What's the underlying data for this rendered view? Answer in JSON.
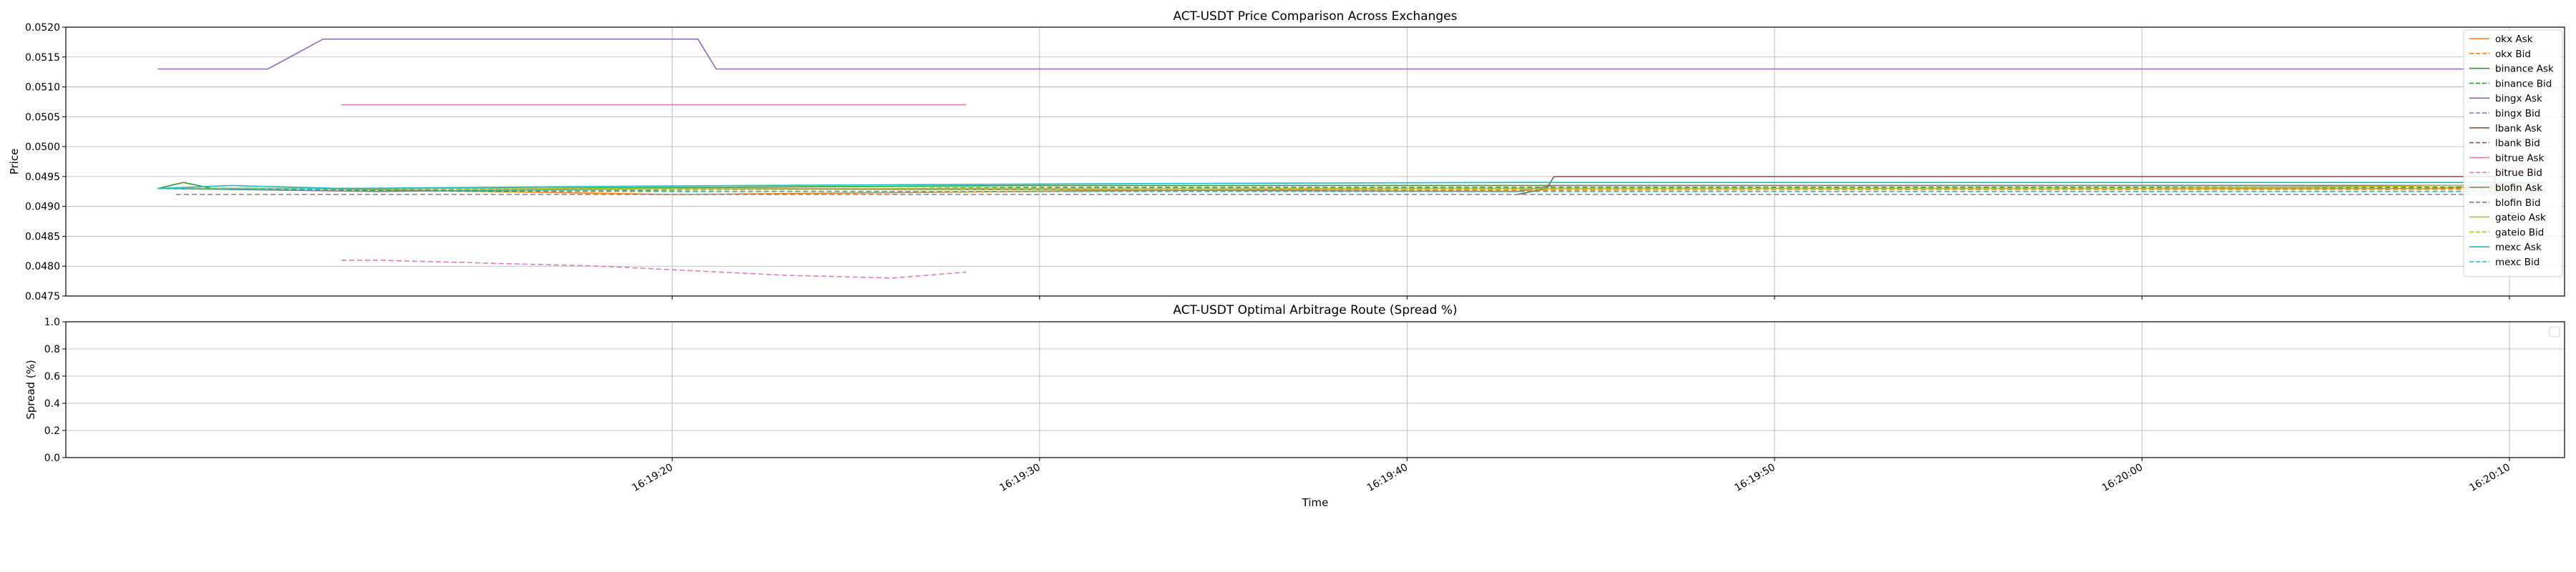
{
  "chart_data": [
    {
      "type": "line",
      "title": "ACT-USDT Price Comparison Across Exchanges",
      "xlabel": "",
      "ylabel": "Price",
      "xlim_seconds": [
        3.5,
        71.5
      ],
      "ylim": [
        0.0475,
        0.052
      ],
      "yticks": [
        "0.0475",
        "0.0480",
        "0.0485",
        "0.0490",
        "0.0495",
        "0.0500",
        "0.0505",
        "0.0510",
        "0.0515",
        "0.0520"
      ],
      "xticks_seconds": [
        20,
        30,
        40,
        50,
        60,
        70
      ],
      "grid": true,
      "legend_position": "right",
      "series": [
        {
          "name": "okx Ask",
          "color": "#ff7f0e",
          "dash": "solid",
          "x": [
            6,
            10,
            20,
            40,
            43,
            55,
            68,
            70
          ],
          "y": [
            0.0493,
            0.0493,
            0.0492,
            0.0493,
            0.0493,
            0.0493,
            0.0493,
            0.04935
          ]
        },
        {
          "name": "okx Bid",
          "color": "#ff7f0e",
          "dash": "dashed",
          "x": [
            6,
            15,
            30,
            50,
            68,
            70
          ],
          "y": [
            0.0493,
            0.04925,
            0.04925,
            0.04928,
            0.0493,
            0.0493
          ]
        },
        {
          "name": "binance Ask",
          "color": "#2ca02c",
          "dash": "solid",
          "x": [
            6,
            6.7,
            7.5,
            10,
            15,
            30,
            45,
            60,
            70
          ],
          "y": [
            0.0493,
            0.0494,
            0.0493,
            0.0493,
            0.0493,
            0.04935,
            0.04935,
            0.04935,
            0.04935
          ]
        },
        {
          "name": "binance Bid",
          "color": "#2ca02c",
          "dash": "dashed",
          "x": [
            6,
            15,
            30,
            45,
            60,
            70
          ],
          "y": [
            0.0493,
            0.04925,
            0.04932,
            0.04932,
            0.04932,
            0.04932
          ]
        },
        {
          "name": "bingx Ask",
          "color": "#9467bd",
          "dash": "solid",
          "x": [
            6,
            9,
            10.5,
            20.7,
            21.2,
            71
          ],
          "y": [
            0.0513,
            0.0513,
            0.0518,
            0.0518,
            0.0513,
            0.0513
          ]
        },
        {
          "name": "bingx Bid",
          "color": "#9467bd",
          "dash": "dashed",
          "x": [],
          "y": []
        },
        {
          "name": "lbank Ask",
          "color": "#8c564b",
          "dash": "solid",
          "x": [
            43,
            43.8,
            44,
            68.5,
            69.6,
            69.6
          ],
          "y": [
            0.0492,
            0.0493,
            0.0495,
            0.0495,
            0.0495,
            0.0492
          ]
        },
        {
          "name": "lbank Bid",
          "color": "#8c564b",
          "dash": "dashed",
          "x": [],
          "y": []
        },
        {
          "name": "bitrue Ask",
          "color": "#e377c2",
          "dash": "solid",
          "x": [
            11,
            28
          ],
          "y": [
            0.0507,
            0.0507
          ]
        },
        {
          "name": "bitrue Bid",
          "color": "#e377c2",
          "dash": "dashed",
          "x": [
            11,
            12,
            18,
            23,
            26,
            28
          ],
          "y": [
            0.0481,
            0.0481,
            0.048,
            0.04785,
            0.0478,
            0.0479
          ]
        },
        {
          "name": "blofin Ask",
          "color": "#7f7f7f",
          "dash": "solid",
          "x": [
            6,
            12,
            20,
            43,
            44,
            70
          ],
          "y": [
            0.0493,
            0.04925,
            0.0493,
            0.04925,
            0.04935,
            0.04935
          ]
        },
        {
          "name": "blofin Bid",
          "color": "#7f7f7f",
          "dash": "dashed",
          "x": [
            6.5,
            10,
            20,
            40,
            70
          ],
          "y": [
            0.0492,
            0.0492,
            0.0492,
            0.0492,
            0.0492
          ]
        },
        {
          "name": "gateio Ask",
          "color": "#bcbd22",
          "dash": "solid",
          "x": [
            6,
            10,
            20,
            40,
            60,
            69,
            71
          ],
          "y": [
            0.0493,
            0.0493,
            0.0493,
            0.0493,
            0.0493,
            0.04935,
            0.0493
          ]
        },
        {
          "name": "gateio Bid",
          "color": "#bcbd22",
          "dash": "dashed",
          "x": [
            6,
            20,
            40,
            60,
            71
          ],
          "y": [
            0.0493,
            0.04928,
            0.04928,
            0.04928,
            0.04928
          ]
        },
        {
          "name": "mexc Ask",
          "color": "#17becf",
          "dash": "solid",
          "x": [
            6,
            8,
            11,
            15,
            22,
            32,
            43,
            55,
            65,
            71
          ],
          "y": [
            0.0493,
            0.04935,
            0.0493,
            0.04932,
            0.04935,
            0.04938,
            0.0494,
            0.0494,
            0.0494,
            0.0494
          ]
        },
        {
          "name": "mexc Bid",
          "color": "#17becf",
          "dash": "dashed",
          "x": [
            6,
            20,
            40,
            60,
            71
          ],
          "y": [
            0.0493,
            0.04925,
            0.04925,
            0.04925,
            0.04925
          ]
        }
      ]
    },
    {
      "type": "line",
      "title": "ACT-USDT Optimal Arbitrage Route (Spread %)",
      "xlabel": "Time",
      "ylabel": "Spread (%)",
      "xlim_seconds": [
        3.5,
        71.5
      ],
      "ylim": [
        0.0,
        1.0
      ],
      "yticks": [
        "0.0",
        "0.2",
        "0.4",
        "0.6",
        "0.8",
        "1.0"
      ],
      "xticks": [
        "16:19:20",
        "16:19:30",
        "16:19:40",
        "16:19:50",
        "16:20:00",
        "16:20:10"
      ],
      "xticks_seconds": [
        20,
        30,
        40,
        50,
        60,
        70
      ],
      "grid": true,
      "legend_position": "upper right",
      "series": []
    }
  ]
}
